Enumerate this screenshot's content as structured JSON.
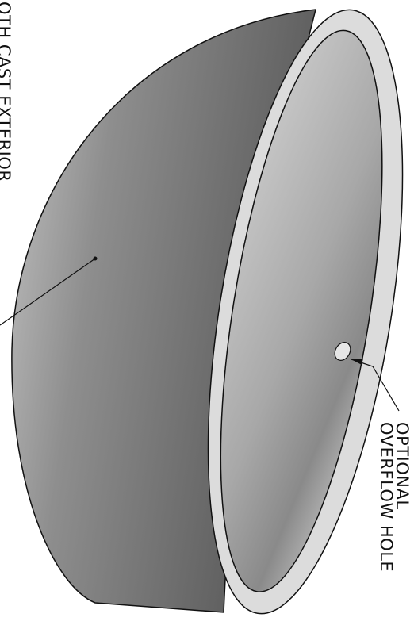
{
  "labels": {
    "exterior": "OTH CAST EXTERIOR",
    "hole_line1": "OPTIONAL",
    "hole_line2": "OVERFLOW HOLE"
  }
}
